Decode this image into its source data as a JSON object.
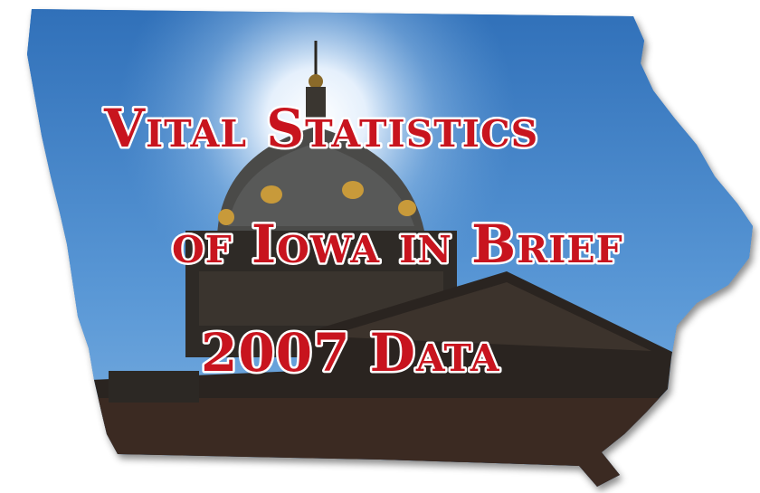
{
  "cover": {
    "title_lines": [
      "Vital Statistics",
      "of Iowa in Brief",
      "2007 Data"
    ]
  }
}
